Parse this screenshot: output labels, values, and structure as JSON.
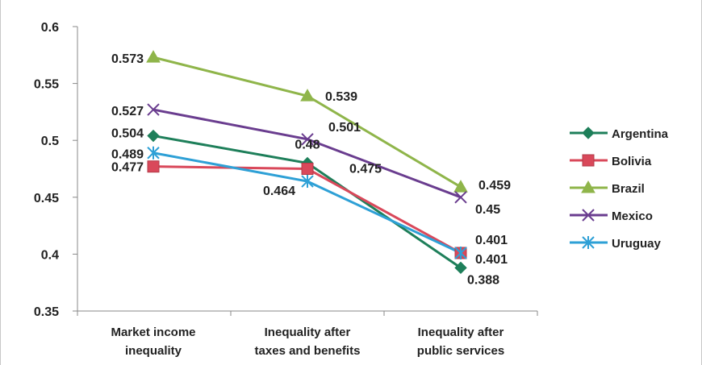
{
  "chart_data": {
    "type": "line",
    "categories": [
      [
        "Market income",
        "inequality"
      ],
      [
        "Inequality after",
        "taxes and benefits"
      ],
      [
        "Inequality after",
        "public services"
      ]
    ],
    "yticks": [
      "0.35",
      "0.4",
      "0.45",
      "0.5",
      "0.55",
      "0.6"
    ],
    "ylim": [
      0.35,
      0.6
    ],
    "legend_position": "right",
    "grid": false,
    "series": [
      {
        "name": "Argentina",
        "values": [
          0.504,
          0.48,
          0.388
        ],
        "color": "#1e7f5a",
        "marker": "diamond",
        "labels": [
          "0.504",
          "0.48",
          "0.388"
        ]
      },
      {
        "name": "Bolivia",
        "values": [
          0.477,
          0.475,
          0.401
        ],
        "color": "#d9485a",
        "marker": "square",
        "labels": [
          "0.477",
          "0.475",
          "0.401"
        ]
      },
      {
        "name": "Brazil",
        "values": [
          0.573,
          0.539,
          0.459
        ],
        "color": "#8fb54a",
        "marker": "triangle",
        "labels": [
          "0.573",
          "0.539",
          "0.459"
        ]
      },
      {
        "name": "Mexico",
        "values": [
          0.527,
          0.501,
          0.45
        ],
        "color": "#6a3d8f",
        "marker": "x",
        "labels": [
          "0.527",
          "0.501",
          "0.45"
        ]
      },
      {
        "name": "Uruguay",
        "values": [
          0.489,
          0.464,
          0.401
        ],
        "color": "#2ea0d6",
        "marker": "star",
        "labels": [
          "0.489",
          "0.464",
          "0.401"
        ]
      }
    ]
  }
}
